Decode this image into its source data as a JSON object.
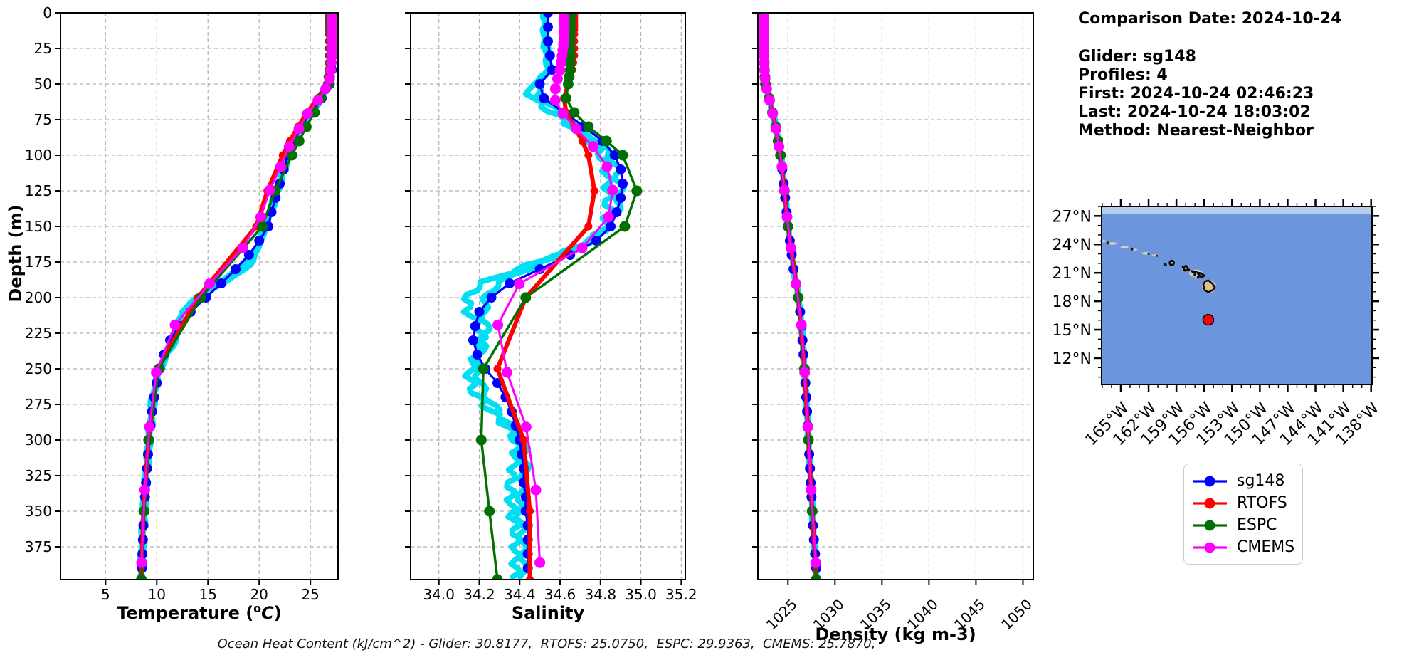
{
  "info_panel": {
    "comparison_date": "Comparison Date: 2024-10-24",
    "glider": "Glider: sg148",
    "profiles": "Profiles: 4",
    "first": "First: 2024-10-24 02:46:23",
    "last": "Last: 2024-10-24 18:03:02",
    "method": "Method: Nearest-Neighbor"
  },
  "legend": {
    "items": [
      {
        "label": "sg148",
        "color": "#0000ff"
      },
      {
        "label": "RTOFS",
        "color": "#ff0000"
      },
      {
        "label": "ESPC",
        "color": "#007000"
      },
      {
        "label": "CMEMS",
        "color": "#ff00ff"
      }
    ]
  },
  "footer": "Ocean Heat Content (kJ/cm^2) - Glider: 30.8177,  RTOFS: 25.0750,  ESPC: 29.9363,  CMEMS: 25.7870,",
  "chart_data": {
    "type": "line",
    "description": "Glider sg148 vs model profiles of temperature, salinity and density versus depth",
    "ohc": {
      "glider": 30.8177,
      "rtofs": 25.075,
      "espc": 29.9363,
      "cmems": 25.787
    },
    "depth_axis": {
      "label": "Depth (m)",
      "ticks": [
        0,
        25,
        50,
        75,
        100,
        125,
        150,
        175,
        200,
        225,
        250,
        275,
        300,
        325,
        350,
        375
      ],
      "range": [
        0,
        398
      ]
    },
    "depths": [
      0,
      10,
      20,
      30,
      40,
      50,
      60,
      70,
      80,
      90,
      100,
      110,
      120,
      130,
      140,
      150,
      160,
      170,
      180,
      190,
      200,
      210,
      220,
      230,
      240,
      250,
      260,
      270,
      280,
      290,
      300,
      310,
      320,
      330,
      340,
      350,
      360,
      370,
      380,
      390
    ],
    "series_order": [
      "sg148",
      "RTOFS",
      "ESPC",
      "CMEMS"
    ],
    "series_styles": {
      "sg148": {
        "color": "#0000ff",
        "lw": 3.2,
        "marker": 7,
        "levels": "sg148"
      },
      "RTOFS": {
        "color": "#ff0000",
        "lw": 6,
        "marker": 5.5,
        "levels": "model"
      },
      "ESPC": {
        "color": "#007000",
        "lw": 3.5,
        "marker": 7.5,
        "levels": "model"
      },
      "CMEMS": {
        "color": "#ff00ff",
        "lw": 3,
        "marker": 7.5,
        "levels": "cmems"
      }
    },
    "levels": {
      "sg148": [
        0,
        10,
        20,
        30,
        40,
        50,
        60,
        70,
        80,
        90,
        100,
        110,
        120,
        130,
        140,
        150,
        160,
        170,
        180,
        190,
        200,
        210,
        220,
        230,
        240,
        250,
        260,
        270,
        280,
        290,
        300,
        310,
        320,
        330,
        340,
        350,
        360,
        370,
        380,
        390
      ],
      "model": [
        0,
        2,
        4,
        6,
        8,
        10,
        12,
        15,
        20,
        25,
        30,
        35,
        40,
        45,
        50,
        60,
        70,
        80,
        90,
        100,
        125,
        150,
        200,
        250,
        300,
        350,
        398
      ],
      "cmems": [
        0.5,
        1.6,
        2.6,
        3.8,
        5.1,
        6.4,
        8.1,
        9.8,
        11.8,
        14,
        16.5,
        19.3,
        22.5,
        26.2,
        30.3,
        34.9,
        40.3,
        46.4,
        53.4,
        61.5,
        70.8,
        81.5,
        93.9,
        108,
        124.5,
        143.4,
        165.1,
        190.3,
        219.1,
        252.5,
        290.9,
        335.1,
        386.1
      ],
      "raw": "continuous 0-398"
    },
    "raw_style": {
      "name": "glider-raw-profiles",
      "color": "#00e0f2",
      "lw": 8
    },
    "plots": [
      {
        "id": "temperature",
        "xlabel": "Temperature (°C)",
        "xlabel_parts": {
          "pre": "Temperature (",
          "sup": "o",
          "italic": "C",
          "post": ")"
        },
        "xticks": [
          5,
          10,
          15,
          20,
          25
        ],
        "xtick_labels": [
          "5",
          "10",
          "15",
          "20",
          "25"
        ],
        "xrange": [
          0.6,
          27.7
        ],
        "rotate_xticks": false,
        "series": {
          "sg148": [
            27.2,
            27.2,
            27.2,
            27.2,
            27.1,
            26.9,
            26.1,
            25.0,
            24.1,
            23.4,
            22.8,
            22.4,
            22.0,
            21.6,
            21.2,
            20.9,
            20.0,
            19.0,
            17.7,
            16.3,
            14.8,
            13.3,
            12.2,
            11.3,
            10.7,
            10.3,
            10.0,
            9.75,
            9.55,
            9.4,
            9.25,
            9.15,
            9.05,
            8.95,
            8.85,
            8.8,
            8.7,
            8.65,
            8.6,
            8.55
          ],
          "RTOFS": [
            26.8,
            26.8,
            26.8,
            26.8,
            26.75,
            26.6,
            25.7,
            24.7,
            23.8,
            23.0,
            22.3,
            21.8,
            21.1,
            20.5,
            20.1,
            19.7,
            18.8,
            17.8,
            16.6,
            15.3,
            14.0,
            12.8,
            11.8,
            11.0,
            10.5,
            10.1,
            9.85,
            9.65,
            9.45,
            9.3,
            9.2,
            9.05,
            8.95,
            8.85,
            8.8,
            8.7,
            8.65,
            8.6,
            8.55,
            8.5
          ],
          "ESPC": [
            27.0,
            27.0,
            27.0,
            27.0,
            26.95,
            26.8,
            26.0,
            25.4,
            24.6,
            23.9,
            23.2,
            22.6,
            21.9,
            21.2,
            20.8,
            20.3,
            19.4,
            18.3,
            17.0,
            15.6,
            14.3,
            13.0,
            12.0,
            11.2,
            10.6,
            10.2,
            9.9,
            9.7,
            9.5,
            9.35,
            9.2,
            9.1,
            9.0,
            8.9,
            8.8,
            8.75,
            8.7,
            8.6,
            8.55,
            8.5
          ],
          "CMEMS": [
            27.1,
            27.1,
            27.1,
            27.1,
            27.0,
            26.8,
            25.9,
            24.8,
            24.0,
            23.2,
            22.5,
            22.0,
            21.3,
            20.7,
            20.3,
            19.9,
            18.9,
            17.9,
            16.6,
            15.2,
            13.9,
            12.7,
            11.7,
            10.9,
            10.4,
            10.0,
            9.8,
            9.6,
            9.45,
            9.3,
            9.15,
            9.0,
            8.95,
            8.85,
            8.8,
            8.7,
            8.65,
            8.6,
            8.55,
            8.5
          ]
        },
        "raw_profiles": [
          {
            "shift": 0.08,
            "bulge_amp": 1.1,
            "bulge_center": 195,
            "bulge_sigma": 28,
            "period": 60,
            "phase": 2.1,
            "small_amp": 0.12,
            "small_period": 14
          },
          {
            "shift": -0.12,
            "bulge_amp": 0.8,
            "bulge_center": 200,
            "bulge_sigma": 35,
            "period": 70,
            "phase": 5.16,
            "small_amp": 0.1,
            "small_period": 18
          }
        ]
      },
      {
        "id": "salinity",
        "xlabel": "Salinity",
        "xticks": [
          34.0,
          34.2,
          34.4,
          34.6,
          34.8,
          35.0,
          35.2
        ],
        "xtick_labels": [
          "34.0",
          "34.2",
          "34.4",
          "34.6",
          "34.8",
          "35.0",
          "35.2"
        ],
        "xrange": [
          33.86,
          35.22
        ],
        "rotate_xticks": false,
        "series": {
          "sg148": [
            34.54,
            34.54,
            34.54,
            34.55,
            34.56,
            34.5,
            34.52,
            34.62,
            34.72,
            34.81,
            34.87,
            34.9,
            34.91,
            34.9,
            34.88,
            34.85,
            34.78,
            34.65,
            34.5,
            34.35,
            34.26,
            34.2,
            34.18,
            34.17,
            34.19,
            34.23,
            34.29,
            34.33,
            34.36,
            34.38,
            34.4,
            34.41,
            34.42,
            34.42,
            34.43,
            34.43,
            34.44,
            34.44,
            34.44,
            34.44
          ],
          "RTOFS": [
            34.67,
            34.67,
            34.67,
            34.67,
            34.66,
            34.64,
            34.62,
            34.63,
            34.67,
            34.71,
            34.74,
            34.76,
            34.77,
            34.77,
            34.76,
            34.74,
            34.7,
            34.63,
            34.55,
            34.47,
            34.43,
            34.39,
            34.35,
            34.32,
            34.3,
            34.29,
            34.31,
            34.34,
            34.37,
            34.4,
            34.42,
            34.43,
            34.44,
            34.44,
            34.45,
            34.45,
            34.45,
            34.45,
            34.45,
            34.45
          ],
          "ESPC": [
            34.65,
            34.65,
            34.65,
            34.65,
            34.65,
            34.64,
            34.63,
            34.67,
            34.74,
            34.83,
            34.91,
            34.96,
            34.98,
            34.98,
            34.96,
            34.92,
            34.84,
            34.72,
            34.57,
            34.45,
            34.43,
            34.37,
            34.32,
            34.27,
            34.24,
            34.22,
            34.21,
            34.2,
            34.2,
            34.21,
            34.21,
            34.22,
            34.23,
            34.24,
            34.24,
            34.25,
            34.26,
            34.27,
            34.28,
            34.29
          ],
          "CMEMS": [
            34.62,
            34.62,
            34.62,
            34.61,
            34.6,
            34.58,
            34.57,
            34.61,
            34.67,
            34.74,
            34.8,
            34.84,
            34.86,
            34.86,
            34.85,
            34.82,
            34.76,
            34.66,
            34.52,
            34.4,
            34.34,
            34.31,
            34.29,
            34.28,
            34.3,
            34.33,
            34.36,
            34.39,
            34.41,
            34.43,
            34.45,
            34.46,
            34.47,
            34.48,
            34.48,
            34.49,
            34.49,
            34.5,
            34.5,
            34.5
          ]
        },
        "raw_profiles": [
          {
            "shift": -0.06,
            "bulge_amp": 0.1,
            "bulge_center": 230,
            "bulge_sigma": 55,
            "period": 78,
            "phase": 2.0,
            "small_amp": 0.025,
            "small_period": 11
          },
          {
            "shift": -0.02,
            "bulge_amp": 0.08,
            "bulge_center": 240,
            "bulge_sigma": 60,
            "period": 90,
            "phase": 4.8,
            "small_amp": 0.02,
            "small_period": 14
          }
        ]
      },
      {
        "id": "density",
        "xlabel": "Density (kg m-3)",
        "xticks": [
          1025,
          1030,
          1035,
          1040,
          1045,
          1050
        ],
        "xtick_labels": [
          "1025",
          "1030",
          "1035",
          "1040",
          "1045",
          "1050"
        ],
        "xrange": [
          1021.8,
          1051.1
        ],
        "rotate_xticks": true,
        "series_shared": [
          1022.4,
          1022.4,
          1022.4,
          1022.45,
          1022.5,
          1022.6,
          1023.0,
          1023.35,
          1023.7,
          1023.95,
          1024.2,
          1024.4,
          1024.55,
          1024.7,
          1024.85,
          1025.0,
          1025.2,
          1025.4,
          1025.6,
          1025.85,
          1026.1,
          1026.3,
          1026.45,
          1026.55,
          1026.65,
          1026.75,
          1026.85,
          1026.95,
          1027.03,
          1027.1,
          1027.18,
          1027.26,
          1027.34,
          1027.42,
          1027.5,
          1027.58,
          1027.66,
          1027.76,
          1027.88,
          1028.0
        ],
        "raw_profiles": [
          {
            "shift": 0.05,
            "bulge_amp": 0,
            "bulge_center": 200,
            "bulge_sigma": 50,
            "period": 80,
            "phase": 1.0,
            "small_amp": 0.06,
            "small_period": 15
          },
          {
            "shift": -0.04,
            "bulge_amp": 0,
            "bulge_center": 200,
            "bulge_sigma": 50,
            "period": 80,
            "phase": 3.5,
            "small_amp": 0.05,
            "small_period": 19
          }
        ]
      }
    ]
  },
  "map": {
    "ocean_color": "#6b96dd",
    "shallow_band_color": "#b7cde9",
    "band_lat_min": 27.25,
    "lon_range": [
      -167.07,
      -137.9
    ],
    "lat_range": [
      9.22,
      28.0
    ],
    "lat_ticks": [
      {
        "lat": 27,
        "label": "27°N"
      },
      {
        "lat": 24,
        "label": "24°N"
      },
      {
        "lat": 21,
        "label": "21°N"
      },
      {
        "lat": 18,
        "label": "18°N"
      },
      {
        "lat": 15,
        "label": "15°N"
      },
      {
        "lat": 12,
        "label": "12°N"
      }
    ],
    "lon_ticks": [
      {
        "lon": -165,
        "label": "165°W"
      },
      {
        "lon": -162,
        "label": "162°W"
      },
      {
        "lon": -159,
        "label": "159°W"
      },
      {
        "lon": -156,
        "label": "156°W"
      },
      {
        "lon": -153,
        "label": "153°W"
      },
      {
        "lon": -150,
        "label": "150°W"
      },
      {
        "lon": -147,
        "label": "147°W"
      },
      {
        "lon": -144,
        "label": "144°W"
      },
      {
        "lon": -141,
        "label": "141°W"
      },
      {
        "lon": -138,
        "label": "138°W"
      }
    ],
    "minor_tick_deg": 1,
    "glider_marker": {
      "lon": -155.56,
      "lat": 16.05,
      "color": "#ff0000"
    },
    "land_color": "#dfbe93",
    "dark_land_color": "#2a241c",
    "outline_color": "#0a0a0a",
    "shoal_color": "#ccd2da",
    "island_polygons": [
      {
        "name": "big-island",
        "fill": "land",
        "stroke_w": 2.5,
        "pts": [
          [
            -155.9,
            20.1
          ],
          [
            -155.55,
            20.2
          ],
          [
            -155.1,
            19.85
          ],
          [
            -154.85,
            19.45
          ],
          [
            -155.05,
            19.2
          ],
          [
            -155.55,
            18.95
          ],
          [
            -155.95,
            19.15
          ],
          [
            -156.1,
            19.75
          ]
        ]
      },
      {
        "name": "maui",
        "fill": "land",
        "stroke_w": 3,
        "pts": [
          [
            -156.7,
            21.0
          ],
          [
            -156.35,
            20.95
          ],
          [
            -156.0,
            20.7
          ],
          [
            -156.3,
            20.55
          ],
          [
            -156.6,
            20.8
          ]
        ]
      },
      {
        "name": "molokai",
        "fill": "dark",
        "stroke_w": 2,
        "pts": [
          [
            -157.35,
            21.2
          ],
          [
            -156.8,
            21.15
          ],
          [
            -157.0,
            21.03
          ],
          [
            -157.3,
            21.08
          ]
        ]
      },
      {
        "name": "oahu",
        "fill": "land",
        "stroke_w": 3,
        "pts": [
          [
            -158.3,
            21.6
          ],
          [
            -157.95,
            21.72
          ],
          [
            -157.65,
            21.3
          ],
          [
            -158.1,
            21.25
          ]
        ]
      }
    ],
    "island_circles": [
      {
        "name": "kauai",
        "lon": -159.5,
        "lat": 22.05,
        "r_deg": 0.22,
        "fill": "land",
        "stroke_w": 3
      },
      {
        "name": "niihau",
        "lon": -160.2,
        "lat": 21.85,
        "r_deg": 0.11,
        "fill": "dark",
        "stroke_w": 1.5
      },
      {
        "name": "lanai",
        "lon": -157.0,
        "lat": 20.82,
        "r_deg": 0.1,
        "fill": "dark",
        "stroke_w": 1.5
      },
      {
        "name": "kahoolawe",
        "lon": -156.65,
        "lat": 20.53,
        "r_deg": 0.08,
        "fill": "dark",
        "stroke_w": 1.5
      }
    ],
    "shoal_patches": [
      {
        "lon": -161.3,
        "lat": 22.85,
        "rx": 0.35,
        "ry": 0.12
      },
      {
        "lon": -162.3,
        "lat": 23.05,
        "rx": 0.45,
        "ry": 0.15
      },
      {
        "lon": -163.6,
        "lat": 23.45,
        "rx": 0.4,
        "ry": 0.13
      },
      {
        "lon": -164.6,
        "lat": 23.7,
        "rx": 0.45,
        "ry": 0.14
      },
      {
        "lon": -165.9,
        "lat": 24.1,
        "rx": 0.5,
        "ry": 0.15
      },
      {
        "lon": -166.9,
        "lat": 24.35,
        "rx": 0.35,
        "ry": 0.12
      },
      {
        "lon": -156.9,
        "lat": 20.95,
        "rx": 0.75,
        "ry": 0.4
      },
      {
        "lon": -158.0,
        "lat": 21.45,
        "rx": 0.4,
        "ry": 0.32
      },
      {
        "lon": -159.5,
        "lat": 22.0,
        "rx": 0.32,
        "ry": 0.26
      },
      {
        "lon": -155.5,
        "lat": 19.55,
        "rx": 0.75,
        "ry": 0.7
      },
      {
        "lon": -157.35,
        "lat": 20.45,
        "rx": 0.12,
        "ry": 0.05
      },
      {
        "lon": -156.9,
        "lat": 20.35,
        "rx": 0.08,
        "ry": 0.04
      }
    ],
    "dark_specks": [
      {
        "lon": -161.1,
        "lat": 22.8,
        "r": 1.5
      },
      {
        "lon": -162.0,
        "lat": 23.0,
        "r": 1.5
      },
      {
        "lon": -163.8,
        "lat": 23.5,
        "r": 2
      },
      {
        "lon": -166.4,
        "lat": 24.15,
        "r": 2
      }
    ]
  }
}
